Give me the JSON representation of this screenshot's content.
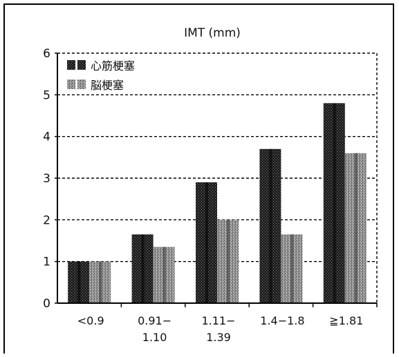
{
  "chart_data": {
    "type": "bar",
    "title": "IMT (mm)",
    "xlabel": "",
    "ylabel": "",
    "ylim": [
      0,
      6
    ],
    "yticks": [
      "0",
      "1",
      "2",
      "3",
      "4",
      "5",
      "6"
    ],
    "grid": "horizontal dashed",
    "legend_position": "top-left",
    "categories": [
      [
        "<0.9"
      ],
      [
        "0.91−",
        "1.10"
      ],
      [
        "1.11−",
        "1.39"
      ],
      [
        "1.4−1.8"
      ],
      [
        "≧1.81"
      ]
    ],
    "series": [
      {
        "name": "心筋梗塞",
        "values": [
          1.0,
          1.65,
          2.9,
          3.7,
          4.8
        ],
        "pattern": "dark"
      },
      {
        "name": "脳梗塞",
        "values": [
          1.0,
          1.35,
          2.0,
          1.65,
          3.6
        ],
        "pattern": "light"
      }
    ],
    "colors": {
      "dark": "#2a2a2a",
      "light": "#8a8a8a",
      "axis": "#000000"
    }
  }
}
